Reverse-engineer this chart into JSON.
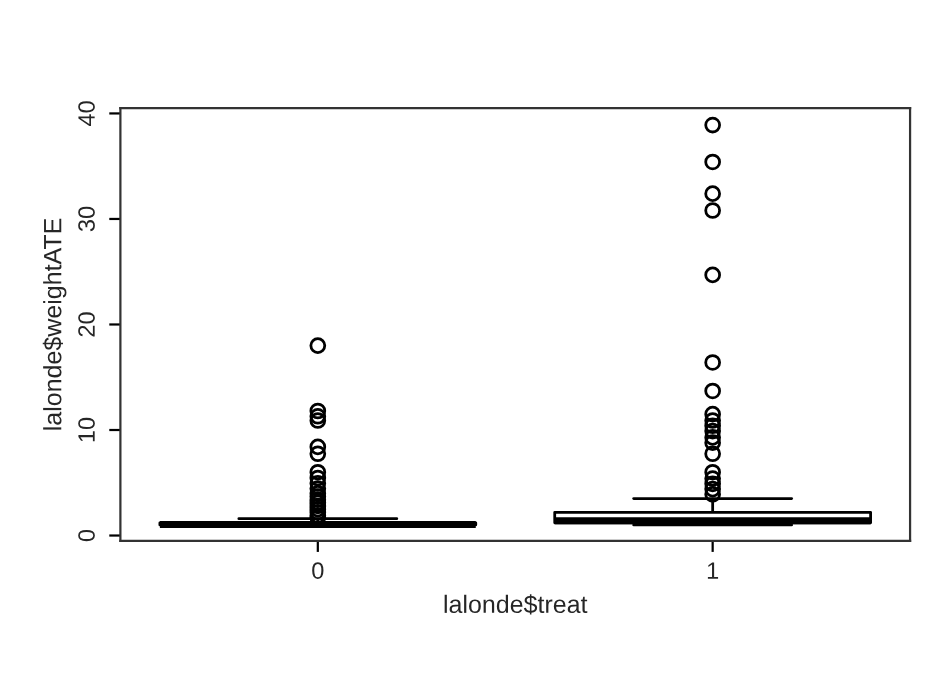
{
  "chart_data": {
    "type": "box",
    "xlabel": "lalonde$treat",
    "ylabel": "lalonde$weightATE",
    "categories": [
      "0",
      "1"
    ],
    "boxes": [
      {
        "low": 1.0,
        "q1": 1.0,
        "median": 1.05,
        "q3": 1.2,
        "high": 1.6,
        "outliers": [
          18.0,
          11.8,
          11.3,
          10.9,
          8.4,
          7.75,
          6.0,
          5.45,
          4.95,
          4.45,
          4.0,
          3.7,
          3.4,
          3.1,
          2.8,
          2.5,
          2.2,
          1.9,
          1.7
        ]
      },
      {
        "low": 1.0,
        "q1": 1.2,
        "median": 1.4,
        "q3": 2.2,
        "high": 3.5,
        "outliers": [
          38.9,
          35.4,
          32.4,
          30.8,
          24.7,
          16.4,
          13.7,
          11.5,
          10.9,
          10.4,
          9.9,
          9.3,
          8.8,
          7.75,
          6.0,
          5.4,
          4.9,
          4.4,
          3.9
        ]
      }
    ],
    "color": "#000000",
    "ylim": [
      -0.5,
      40.5
    ],
    "yticks": [
      0,
      10,
      20,
      30,
      40
    ],
    "grid": false
  }
}
